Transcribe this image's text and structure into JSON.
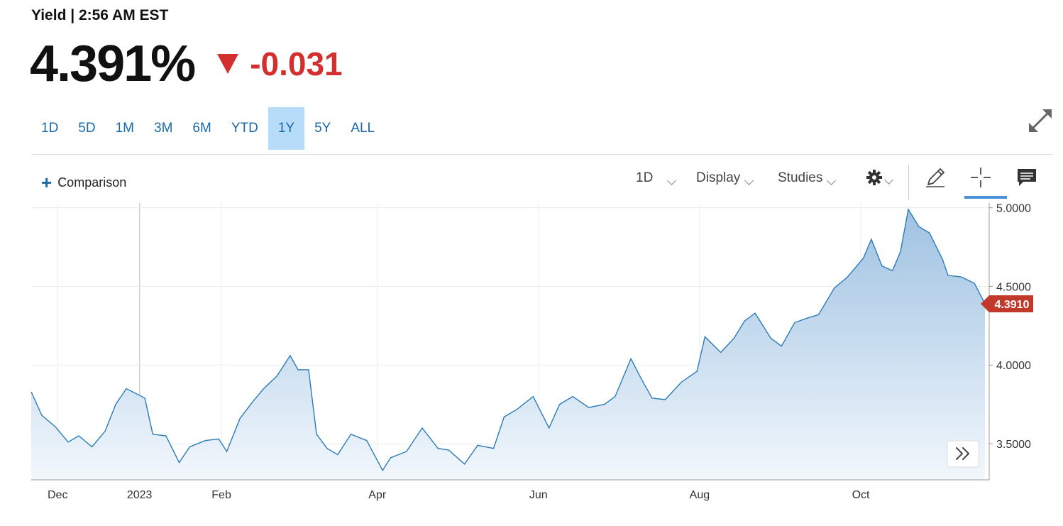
{
  "header": {
    "label": "Yield | 2:56 AM EST",
    "price": "4.391%",
    "change": "-0.031",
    "change_color": "#d32f2f"
  },
  "range_tabs": [
    {
      "label": "1D",
      "active": false
    },
    {
      "label": "5D",
      "active": false
    },
    {
      "label": "1M",
      "active": false
    },
    {
      "label": "3M",
      "active": false
    },
    {
      "label": "6M",
      "active": false
    },
    {
      "label": "YTD",
      "active": false
    },
    {
      "label": "1Y",
      "active": true
    },
    {
      "label": "5Y",
      "active": false
    },
    {
      "label": "ALL",
      "active": false
    }
  ],
  "toolbar": {
    "comparison_label": "Comparison",
    "interval_label": "1D",
    "display_label": "Display",
    "studies_label": "Studies",
    "icons": [
      "gear-icon",
      "pencil-icon",
      "crosshair-icon",
      "comment-icon",
      "expand-icon",
      "fast-forward-icon"
    ]
  },
  "colors": {
    "accent": "#1a6aa8",
    "line": "#2c7bb6",
    "area_top": "#9fc2e2",
    "area_bottom": "#f2f7fc",
    "last_price_tag": "#c0392b",
    "active_tab": "#b7dcfa"
  },
  "chart_data": {
    "type": "area",
    "title": "",
    "xlabel": "",
    "ylabel": "",
    "x_tick_labels": [
      "Dec",
      "2023",
      "Feb",
      "Apr",
      "Jun",
      "Aug",
      "Oct"
    ],
    "y_tick_labels": [
      "5.0000",
      "4.5000",
      "4.0000",
      "3.5000"
    ],
    "ylim": [
      3.27,
      5.03
    ],
    "grid": true,
    "last_price_label": "4.3910",
    "series": [
      {
        "x": [
          "2022-11-21",
          "2022-11-25",
          "2022-11-30",
          "2022-12-05",
          "2022-12-09",
          "2022-12-14",
          "2022-12-19",
          "2022-12-23",
          "2022-12-27",
          "2023-01-03",
          "2023-01-06",
          "2023-01-11",
          "2023-01-16",
          "2023-01-20",
          "2023-01-26",
          "2023-01-31",
          "2023-02-03",
          "2023-02-08",
          "2023-02-13",
          "2023-02-17",
          "2023-02-22",
          "2023-02-27",
          "2023-03-02",
          "2023-03-06",
          "2023-03-09",
          "2023-03-13",
          "2023-03-17",
          "2023-03-22",
          "2023-03-28",
          "2023-04-03",
          "2023-04-06",
          "2023-04-12",
          "2023-04-18",
          "2023-04-24",
          "2023-04-28",
          "2023-05-04",
          "2023-05-09",
          "2023-05-15",
          "2023-05-19",
          "2023-05-24",
          "2023-05-30",
          "2023-06-05",
          "2023-06-09",
          "2023-06-14",
          "2023-06-20",
          "2023-06-26",
          "2023-06-30",
          "2023-07-06",
          "2023-07-10",
          "2023-07-14",
          "2023-07-19",
          "2023-07-25",
          "2023-07-31",
          "2023-08-03",
          "2023-08-09",
          "2023-08-14",
          "2023-08-18",
          "2023-08-22",
          "2023-08-28",
          "2023-09-01",
          "2023-09-06",
          "2023-09-11",
          "2023-09-15",
          "2023-09-21",
          "2023-09-26",
          "2023-10-02",
          "2023-10-05",
          "2023-10-09",
          "2023-10-13",
          "2023-10-16",
          "2023-10-19",
          "2023-10-23",
          "2023-10-27",
          "2023-11-01",
          "2023-11-03",
          "2023-11-08",
          "2023-11-13",
          "2023-11-17"
        ],
        "values": [
          3.83,
          3.68,
          3.61,
          3.51,
          3.55,
          3.48,
          3.58,
          3.75,
          3.85,
          3.79,
          3.56,
          3.55,
          3.38,
          3.48,
          3.52,
          3.53,
          3.45,
          3.66,
          3.77,
          3.85,
          3.93,
          4.06,
          3.97,
          3.97,
          3.56,
          3.47,
          3.43,
          3.56,
          3.52,
          3.33,
          3.41,
          3.45,
          3.6,
          3.47,
          3.46,
          3.37,
          3.49,
          3.47,
          3.67,
          3.72,
          3.8,
          3.6,
          3.75,
          3.8,
          3.73,
          3.75,
          3.8,
          4.04,
          3.91,
          3.79,
          3.78,
          3.89,
          3.96,
          4.18,
          4.08,
          4.17,
          4.28,
          4.33,
          4.17,
          4.12,
          4.27,
          4.3,
          4.32,
          4.49,
          4.56,
          4.68,
          4.8,
          4.63,
          4.6,
          4.72,
          4.99,
          4.88,
          4.84,
          4.67,
          4.57,
          4.56,
          4.52,
          4.39
        ]
      }
    ]
  }
}
